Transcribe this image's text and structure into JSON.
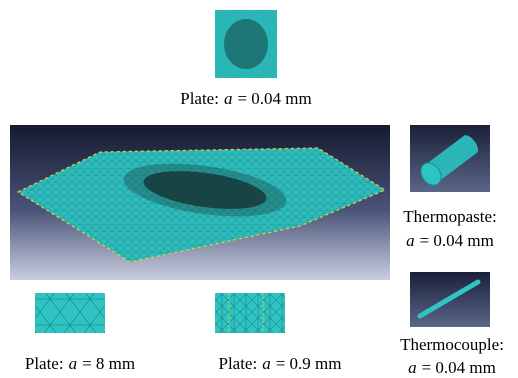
{
  "panels": {
    "plate_fine_zoom": {
      "label": {
        "text": "Plate:",
        "variable": "a",
        "value": "= 0.04 mm"
      }
    },
    "thermopaste": {
      "label": {
        "text": "Thermopaste:",
        "variable": "a",
        "value": "= 0.04 mm"
      }
    },
    "thermocouple": {
      "label": {
        "text": "Thermocouple:",
        "variable": "a",
        "value": "= 0.04 mm"
      }
    },
    "plate_coarse": {
      "label": {
        "text": "Plate:",
        "variable": "a",
        "value": "= 8 mm"
      }
    },
    "plate_medium": {
      "label": {
        "text": "Plate:",
        "variable": "a",
        "value": "= 0.9 mm"
      }
    }
  }
}
